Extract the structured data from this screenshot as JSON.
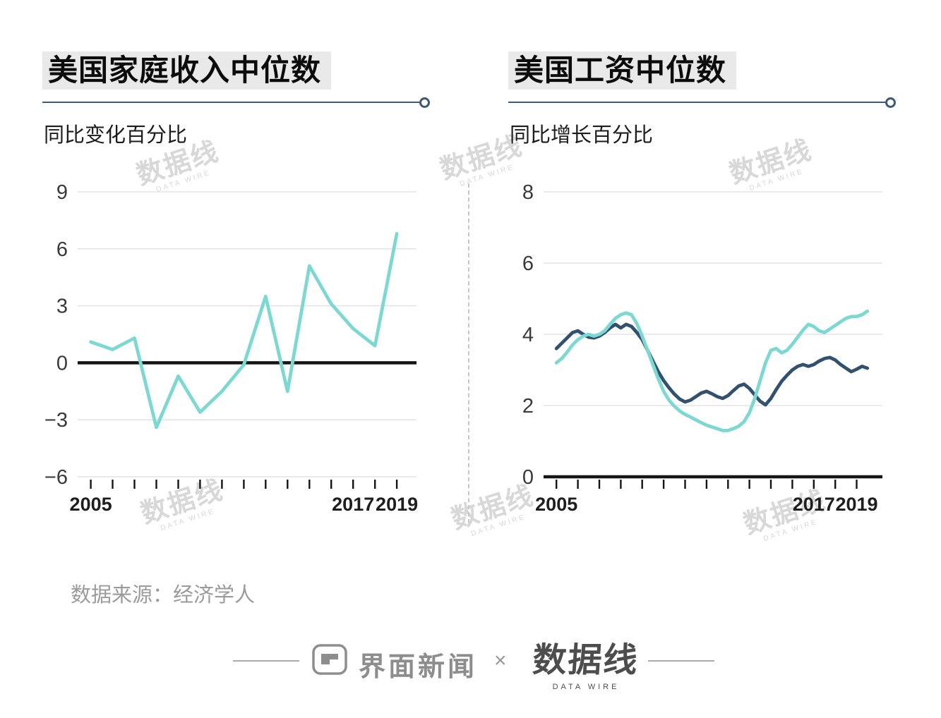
{
  "colors": {
    "teal": "#7cd9d2",
    "navy": "#31516f",
    "grid": "#e4e4e4",
    "axis": "#151515",
    "rule": "#3d5b78",
    "title_bg": "#e9e9e9",
    "watermark": "#d8d8d8"
  },
  "watermark": {
    "text": "数据线",
    "subtext": "DATA WIRE"
  },
  "source": {
    "label": "数据来源：经济学人"
  },
  "footer": {
    "jiemian_label": "界面新闻",
    "separator": "×",
    "datawire_label": "数据线",
    "datawire_sub": "DATA WIRE"
  },
  "chart_data": [
    {
      "type": "line",
      "title": "美国家庭收入中位数",
      "subtitle": "同比变化百分比",
      "x": [
        2005,
        2006,
        2007,
        2008,
        2009,
        2010,
        2011,
        2012,
        2013,
        2014,
        2015,
        2016,
        2017,
        2018,
        2019
      ],
      "series": [
        {
          "name": "median-household-income-change",
          "color": "#7cd9d2",
          "values": [
            1.1,
            0.7,
            1.3,
            -3.4,
            -0.7,
            -2.6,
            -1.5,
            -0.1,
            3.5,
            -1.5,
            5.1,
            3.1,
            1.8,
            0.9,
            6.8
          ]
        }
      ],
      "ylim": [
        -6,
        9
      ],
      "yticks": [
        9,
        6,
        3,
        0,
        -3,
        -6
      ],
      "xlim": [
        2004.4,
        2019.9
      ],
      "xtick_years": [
        2005,
        2006,
        2007,
        2008,
        2009,
        2010,
        2011,
        2012,
        2013,
        2014,
        2015,
        2016,
        2017,
        2018,
        2019
      ],
      "xlabel_years": [
        2005,
        2017,
        2019
      ],
      "grid": "horizontal",
      "legend": false,
      "zero_axis": true
    },
    {
      "type": "line",
      "title": "美国工资中位数",
      "subtitle": "同比增长百分比",
      "x_start": 2005,
      "x_step": 0.25,
      "series": [
        {
          "name": "navy-line",
          "color": "#31516f",
          "values": [
            3.6,
            3.75,
            3.9,
            4.05,
            4.1,
            4.0,
            3.92,
            3.9,
            3.95,
            4.05,
            4.18,
            4.28,
            4.18,
            4.28,
            4.22,
            4.05,
            3.85,
            3.55,
            3.25,
            2.95,
            2.7,
            2.5,
            2.32,
            2.18,
            2.1,
            2.15,
            2.25,
            2.35,
            2.4,
            2.33,
            2.25,
            2.2,
            2.28,
            2.42,
            2.55,
            2.6,
            2.48,
            2.3,
            2.12,
            2.02,
            2.2,
            2.45,
            2.68,
            2.85,
            3.0,
            3.1,
            3.15,
            3.1,
            3.15,
            3.25,
            3.32,
            3.35,
            3.28,
            3.15,
            3.05,
            2.95,
            3.02,
            3.1,
            3.05
          ]
        },
        {
          "name": "teal-line",
          "color": "#7cd9d2",
          "values": [
            3.2,
            3.32,
            3.5,
            3.7,
            3.85,
            3.95,
            4.0,
            3.95,
            4.0,
            4.1,
            4.28,
            4.45,
            4.55,
            4.6,
            4.55,
            4.3,
            3.95,
            3.55,
            3.15,
            2.75,
            2.4,
            2.15,
            1.98,
            1.85,
            1.75,
            1.68,
            1.6,
            1.52,
            1.45,
            1.4,
            1.35,
            1.3,
            1.3,
            1.35,
            1.42,
            1.55,
            1.8,
            2.2,
            2.7,
            3.2,
            3.55,
            3.6,
            3.48,
            3.55,
            3.72,
            3.92,
            4.12,
            4.28,
            4.22,
            4.1,
            4.05,
            4.15,
            4.25,
            4.35,
            4.45,
            4.5,
            4.5,
            4.55,
            4.65
          ]
        }
      ],
      "ylim": [
        0,
        8
      ],
      "yticks": [
        8,
        6,
        4,
        2,
        0
      ],
      "xlim": [
        2004.4,
        2020.2
      ],
      "xtick_years": [
        2005,
        2006,
        2007,
        2008,
        2009,
        2010,
        2011,
        2012,
        2013,
        2014,
        2015,
        2016,
        2017,
        2018,
        2019
      ],
      "xlabel_years": [
        2005,
        2017,
        2019
      ],
      "grid": "horizontal",
      "legend": false,
      "zero_axis": true
    }
  ]
}
